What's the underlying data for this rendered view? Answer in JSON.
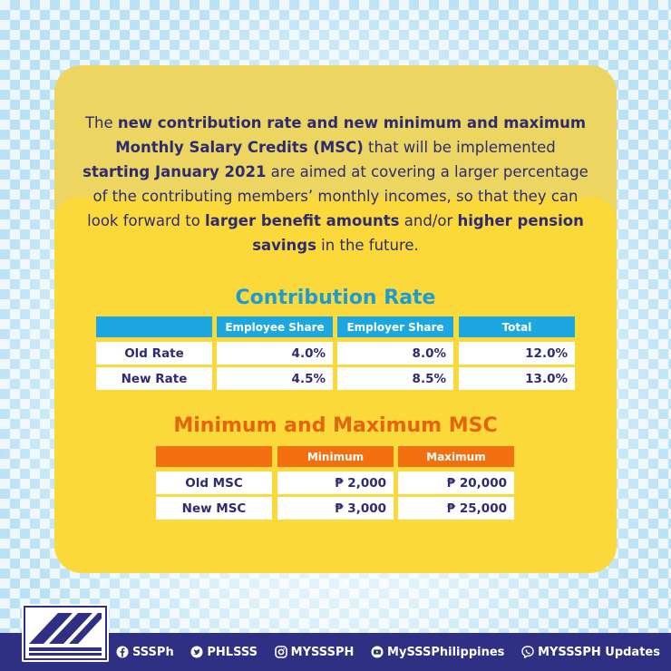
{
  "intro": {
    "p1": "The ",
    "b1": "new contribution rate and new minimum and maximum Monthly Salary Credits (MSC)",
    "p2": " that will be implemented ",
    "b2": "starting January 2021",
    "p3": " are aimed at covering a larger percentage of the contributing members’ monthly incomes, so that they can look forward to ",
    "b3": "larger benefit amounts",
    "p4": " and/or ",
    "b4": "higher pension savings",
    "p5": " in the future."
  },
  "contribution": {
    "title": "Contribution Rate",
    "headers": [
      "",
      "Employee Share",
      "Employer Share",
      "Total"
    ],
    "rows": [
      {
        "label": "Old Rate",
        "values": [
          "4.0%",
          "8.0%",
          "12.0%"
        ]
      },
      {
        "label": "New Rate",
        "values": [
          "4.5%",
          "8.5%",
          "13.0%"
        ]
      }
    ]
  },
  "msc": {
    "title": "Minimum and Maximum MSC",
    "headers": [
      "",
      "Minimum",
      "Maximum"
    ],
    "rows": [
      {
        "label": "Old MSC",
        "values": [
          "₱ 2,000",
          "₱ 20,000"
        ]
      },
      {
        "label": "New MSC",
        "values": [
          "₱ 3,000",
          "₱ 25,000"
        ]
      }
    ]
  },
  "footer": {
    "socials": [
      {
        "icon": "facebook-icon",
        "label": "SSSPh"
      },
      {
        "icon": "twitter-icon",
        "label": "PHLSSS"
      },
      {
        "icon": "instagram-icon",
        "label": "MYSSSPH"
      },
      {
        "icon": "youtube-icon",
        "label": "MySSSPhilippines"
      },
      {
        "icon": "viber-icon",
        "label": "MYSSSPH Updates"
      }
    ]
  },
  "colors": {
    "navy": "#2f2f84",
    "yellow": "#fcd93a",
    "blue": "#1da7e0",
    "orange": "#f2700f"
  }
}
